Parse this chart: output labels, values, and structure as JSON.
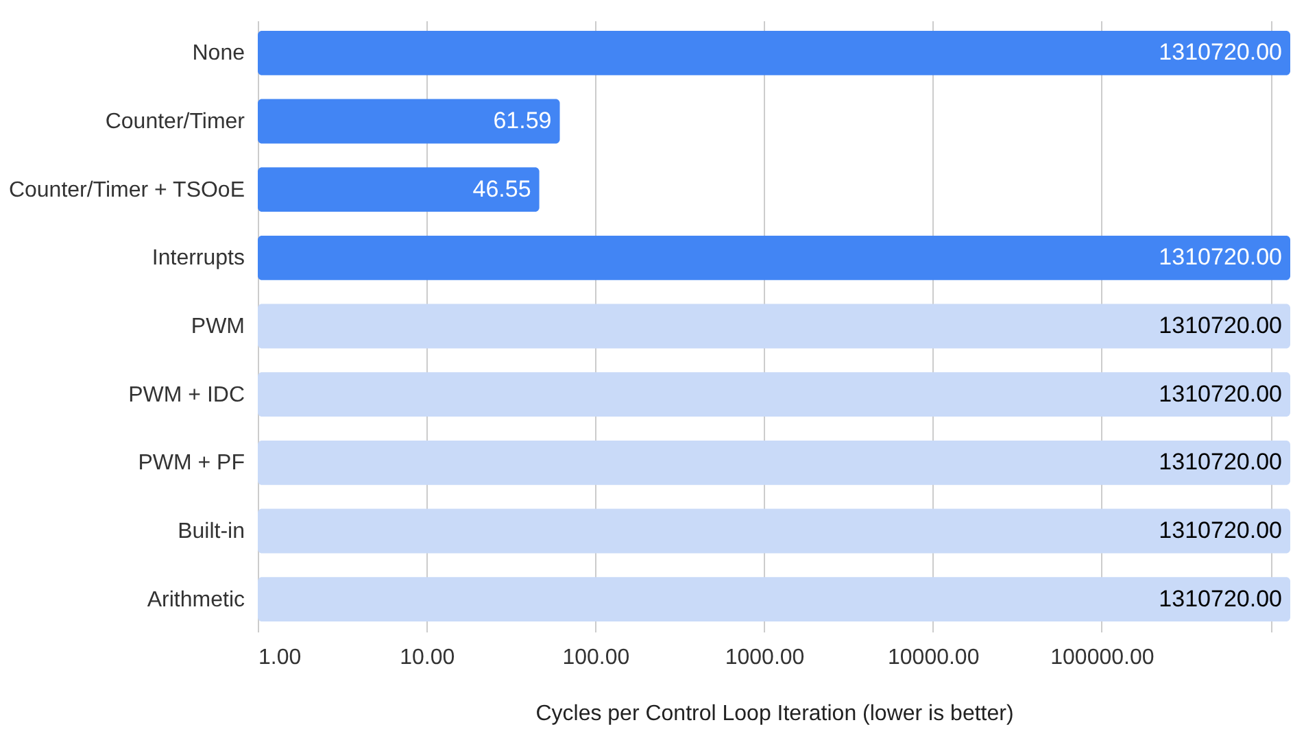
{
  "chart_data": {
    "type": "bar",
    "orientation": "horizontal",
    "log": "x",
    "xlabel": "Cycles per Control Loop Iteration (lower is better)",
    "categories": [
      "None",
      "Counter/Timer",
      "Counter/Timer + TSOoE",
      "Interrupts",
      "PWM",
      "PWM + IDC",
      "PWM + PF",
      "Built-in",
      "Arithmetic"
    ],
    "values": [
      1310720,
      61.59,
      46.55,
      1310720,
      1310720,
      1310720,
      1310720,
      1310720,
      1310720
    ],
    "colors": [
      "#4285f4",
      "#4285f4",
      "#4285f4",
      "#4285f4",
      "#c9daf8",
      "#c9daf8",
      "#c9daf8",
      "#c9daf8",
      "#c9daf8"
    ],
    "value_labels": [
      "1310720.00",
      "61.59",
      "46.55",
      "1310720.00",
      "1310720.00",
      "1310720.00",
      "1310720.00",
      "1310720.00",
      "1310720.00"
    ],
    "xlim": [
      1,
      1310720
    ],
    "xticks": [
      {
        "value": 1,
        "label": "1.00"
      },
      {
        "value": 10,
        "label": "10.00"
      },
      {
        "value": 100,
        "label": "100.00"
      },
      {
        "value": 1000,
        "label": "1000.00"
      },
      {
        "value": 10000,
        "label": "10000.00"
      },
      {
        "value": 100000,
        "label": "100000.00"
      },
      {
        "value": 1000000,
        "label": null
      }
    ],
    "grid": "x"
  }
}
